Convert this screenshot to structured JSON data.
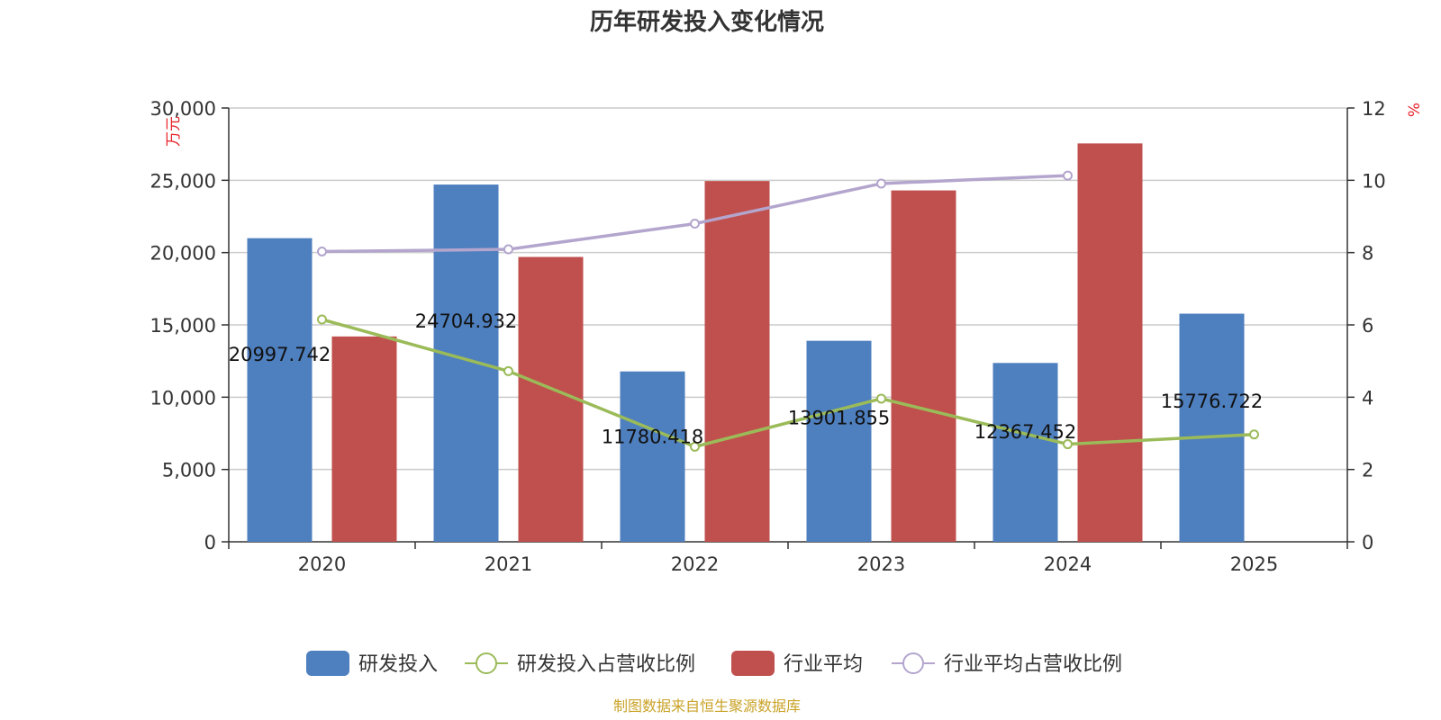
{
  "chart_data": {
    "type": "bar",
    "title": "历年研发投入变化情况",
    "categories": [
      "2020",
      "2021",
      "2022",
      "2023",
      "2024",
      "2025"
    ],
    "y_left": {
      "unit_label": "万元",
      "min": 0,
      "max": 30000,
      "step": 5000,
      "tick_labels": [
        "0",
        "5,000",
        "10,000",
        "15,000",
        "20,000",
        "25,000",
        "30,000"
      ]
    },
    "y_right": {
      "unit_label": "%",
      "min": 0,
      "max": 12,
      "step": 2,
      "tick_labels": [
        "0",
        "2",
        "4",
        "6",
        "8",
        "10",
        "12"
      ]
    },
    "grid": true,
    "legend_position": "bottom",
    "series": [
      {
        "name": "研发投入",
        "kind": "bar",
        "axis": "left",
        "color": "#4e7fbe",
        "values": [
          20997.742,
          24704.932,
          11780.418,
          13901.855,
          12367.452,
          15776.722
        ],
        "labels": [
          "20997.742",
          "24704.932",
          "11780.418",
          "13901.855",
          "12367.452",
          "15776.722"
        ]
      },
      {
        "name": "研发投入占营收比例",
        "kind": "line",
        "axis": "right",
        "color": "#9bbb59",
        "values": [
          6.15,
          4.72,
          2.63,
          3.96,
          2.7,
          2.97
        ]
      },
      {
        "name": "行业平均",
        "kind": "bar",
        "axis": "left",
        "color": "#c0504d",
        "values": [
          14200,
          19700,
          24950,
          24300,
          27550,
          null
        ]
      },
      {
        "name": "行业平均占营收比例",
        "kind": "line",
        "axis": "right",
        "color": "#b3a5cd",
        "values": [
          8.03,
          8.09,
          8.8,
          9.91,
          10.13,
          null
        ]
      }
    ],
    "source": "制图数据来自恒生聚源数据库"
  }
}
